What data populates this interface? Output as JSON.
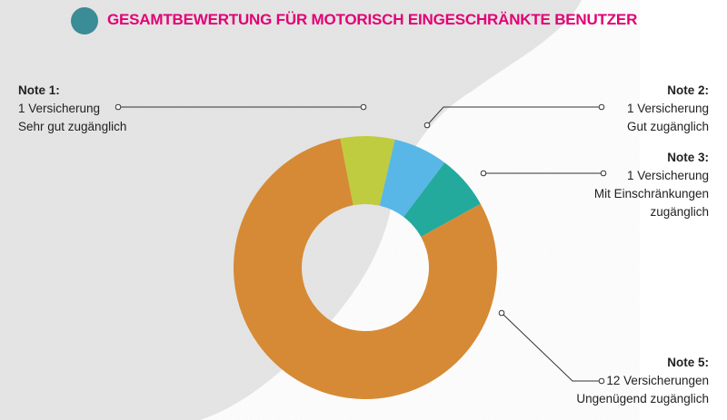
{
  "title": "GESAMTBEWERTUNG FÜR MOTORISCH EINGESCHRÄNKTE BENUTZER",
  "chart_data": {
    "type": "pie",
    "title": "GESAMTBEWERTUNG FÜR MOTORISCH EINGESCHRÄNKTE BENUTZER",
    "categories": [
      "Note 1",
      "Note 2",
      "Note 3",
      "Note 5"
    ],
    "values": [
      1,
      1,
      1,
      12
    ],
    "colors": [
      "#bfcc3f",
      "#58b7e6",
      "#23aa9d",
      "#d68a35"
    ],
    "labels": [
      {
        "title": "Note 1:",
        "count": "1 Versicherung",
        "desc": "Sehr gut zugänglich"
      },
      {
        "title": "Note 2:",
        "count": "1 Versicherung",
        "desc": "Gut zugänglich"
      },
      {
        "title": "Note 3:",
        "count": "1 Versicherung",
        "desc": "Mit Einschränkungen zugänglich"
      },
      {
        "title": "Note 5:",
        "count": "12 Versicherungen",
        "desc": "Ungenügend zugänglich"
      }
    ]
  }
}
